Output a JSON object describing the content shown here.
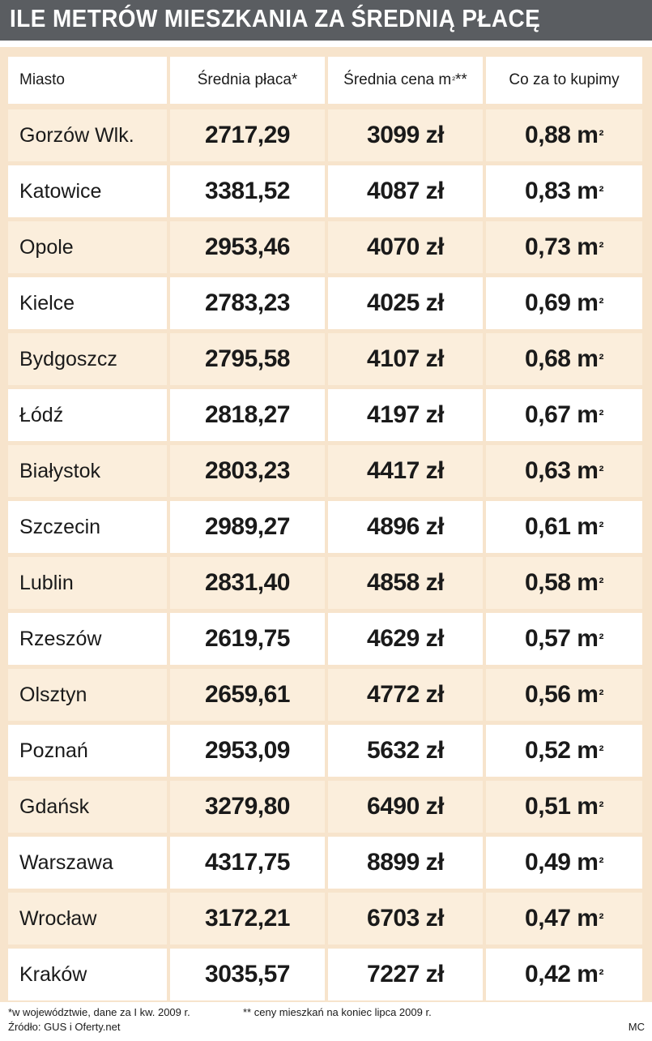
{
  "title": "ILE METRÓW MIESZKANIA ZA ŚREDNIĄ PŁACĘ",
  "colors": {
    "title_bar": "#5a5d61",
    "panel_background": "#f7e4cc",
    "white_row": "#ffffff",
    "tinted_row": "#fbeedc",
    "text": "#1a1a1a"
  },
  "chart_data": {
    "type": "table",
    "columns": [
      "Miasto",
      "Średnia płaca*",
      "Średnia cena m²**",
      "Co za to kupimy"
    ],
    "rows": [
      [
        "Gorzów Wlk.",
        "2717,29",
        "3099 zł",
        "0,88 m²"
      ],
      [
        "Katowice",
        "3381,52",
        "4087 zł",
        "0,83 m²"
      ],
      [
        "Opole",
        "2953,46",
        "4070 zł",
        "0,73 m²"
      ],
      [
        "Kielce",
        "2783,23",
        "4025 zł",
        "0,69 m²"
      ],
      [
        "Bydgoszcz",
        "2795,58",
        "4107 zł",
        "0,68 m²"
      ],
      [
        "Łódź",
        "2818,27",
        "4197 zł",
        "0,67 m²"
      ],
      [
        "Białystok",
        "2803,23",
        "4417 zł",
        "0,63 m²"
      ],
      [
        "Szczecin",
        "2989,27",
        "4896 zł",
        "0,61 m²"
      ],
      [
        "Lublin",
        "2831,40",
        "4858 zł",
        "0,58 m²"
      ],
      [
        "Rzeszów",
        "2619,75",
        "4629 zł",
        "0,57 m²"
      ],
      [
        "Olsztyn",
        "2659,61",
        "4772 zł",
        "0,56 m²"
      ],
      [
        "Poznań",
        "2953,09",
        "5632 zł",
        "0,52 m²"
      ],
      [
        "Gdańsk",
        "3279,80",
        "6490 zł",
        "0,51 m²"
      ],
      [
        "Warszawa",
        "4317,75",
        "8899 zł",
        "0,49 m²"
      ],
      [
        "Wrocław",
        "3172,21",
        "6703 zł",
        "0,47 m²"
      ],
      [
        "Kraków",
        "3035,57",
        "7227 zł",
        "0,42 m²"
      ]
    ]
  },
  "footnotes": {
    "note1": "*w województwie, dane za I kw. 2009 r.",
    "note2": "** ceny mieszkań na koniec lipca 2009 r.",
    "source": "Źródło: GUS i Oferty.net",
    "credit": "MC"
  }
}
